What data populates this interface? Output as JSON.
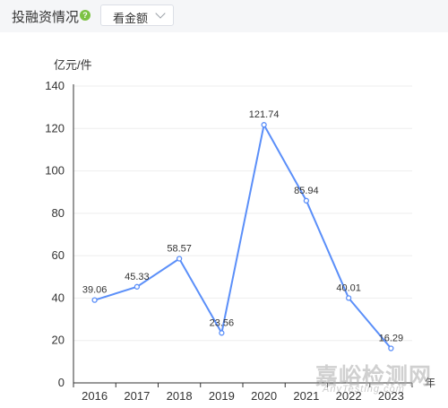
{
  "header": {
    "title": "投融资情况",
    "help_icon_glyph": "?",
    "select_value": "看金额"
  },
  "watermark": {
    "main": "嘉峪检测网",
    "sub": "AnyTesting.com"
  },
  "colors": {
    "line": "#5b8ff9",
    "grid": "#eeeeee",
    "axis": "#333333",
    "header_bg": "#f5f6f8",
    "help_icon": "#7cc243"
  },
  "chart_data": {
    "type": "line",
    "title": "",
    "ylabel": "亿元/件",
    "xlabel": "年",
    "ylim": [
      0,
      140
    ],
    "yticks": [
      0,
      20,
      40,
      60,
      80,
      100,
      120,
      140
    ],
    "grid": true,
    "categories": [
      "2016",
      "2017",
      "2018",
      "2019",
      "2020",
      "2021",
      "2022",
      "2023"
    ],
    "values": [
      39.06,
      45.33,
      58.57,
      23.56,
      121.74,
      85.94,
      40.01,
      16.29
    ],
    "value_labels": [
      "39.06",
      "45.33",
      "58.57",
      "23.56",
      "121.74",
      "85.94",
      "40.01",
      "16.29"
    ]
  }
}
